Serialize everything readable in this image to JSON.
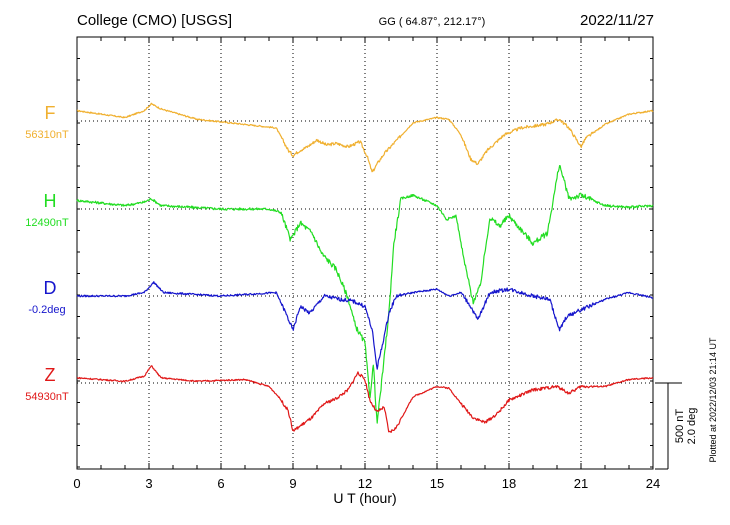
{
  "header": {
    "station": "College (CMO)  [USGS]",
    "coords": "GG ( 64.87°, 212.17°)",
    "date": "2022/11/27"
  },
  "side_note": "Plotted at 2022/12/03 21:14 UT",
  "chart_data": {
    "type": "line",
    "xlabel": "U T (hour)",
    "xlim": [
      0,
      24
    ],
    "xticks": [
      "0",
      "3",
      "6",
      "9",
      "12",
      "15",
      "18",
      "21",
      "24"
    ],
    "grid": true,
    "scale_bar": {
      "label_nt": "500 nT",
      "label_deg": "2.0 deg"
    },
    "series": [
      {
        "name": "F",
        "baseline_label": "56310nT",
        "color": "#f0b030",
        "x": [
          0,
          1,
          2,
          2.8,
          3.1,
          3.5,
          5,
          7,
          8.3,
          8.8,
          9,
          9.3,
          9.6,
          10,
          10.4,
          10.8,
          11.3,
          11.8,
          12.1,
          12.3,
          12.5,
          12.8,
          13.2,
          14,
          15,
          15.5,
          16,
          16.4,
          16.7,
          17.1,
          17.8,
          18.5,
          19.5,
          20.1,
          20.5,
          21,
          21.2,
          22,
          23,
          24
        ],
        "values": [
          60,
          40,
          20,
          60,
          100,
          70,
          10,
          -20,
          -40,
          -170,
          -200,
          -170,
          -150,
          -110,
          -140,
          -130,
          -150,
          -120,
          -210,
          -300,
          -250,
          -190,
          -130,
          -10,
          20,
          10,
          -80,
          -220,
          -250,
          -170,
          -80,
          -40,
          -20,
          10,
          -40,
          -150,
          -100,
          -20,
          40,
          60
        ]
      },
      {
        "name": "H",
        "baseline_label": "12490nT",
        "color": "#22dd22",
        "x": [
          0,
          2,
          2.8,
          3.1,
          3.5,
          6,
          8,
          8.5,
          8.9,
          9.3,
          9.8,
          10.2,
          10.8,
          11.3,
          11.6,
          12,
          12.2,
          12.35,
          12.5,
          12.7,
          13,
          13.2,
          13.5,
          14,
          15,
          15.4,
          15.8,
          16.1,
          16.5,
          16.8,
          17.2,
          17.6,
          18,
          19,
          19.6,
          20.1,
          20.5,
          21,
          22,
          23,
          24
        ],
        "values": [
          50,
          20,
          40,
          60,
          20,
          0,
          0,
          -20,
          -180,
          -80,
          -140,
          -260,
          -350,
          -520,
          -680,
          -780,
          -1100,
          -900,
          -1250,
          -1000,
          -600,
          -200,
          60,
          80,
          20,
          -60,
          -40,
          -280,
          -540,
          -450,
          -50,
          -100,
          -40,
          -200,
          -140,
          260,
          60,
          80,
          20,
          10,
          20
        ]
      },
      {
        "name": "D",
        "baseline_label": "-0.2deg",
        "color": "#1515cc",
        "x": [
          0,
          2,
          2.8,
          3.2,
          3.6,
          6,
          8.3,
          8.7,
          9,
          9.3,
          9.7,
          10.3,
          11,
          11.5,
          12,
          12.3,
          12.5,
          12.7,
          13,
          13.3,
          14,
          15,
          15.5,
          16,
          16.4,
          16.7,
          17.2,
          18,
          19,
          19.7,
          20.1,
          20.4,
          21,
          22,
          23,
          24
        ],
        "values": [
          0,
          0,
          20,
          80,
          20,
          0,
          20,
          -100,
          -200,
          -60,
          -100,
          0,
          -20,
          -30,
          -60,
          -200,
          -420,
          -300,
          -100,
          0,
          20,
          40,
          0,
          20,
          -60,
          -140,
          20,
          40,
          0,
          -20,
          -200,
          -120,
          -80,
          -20,
          20,
          -10
        ]
      },
      {
        "name": "Z",
        "baseline_label": "54930nT",
        "color": "#e01818",
        "x": [
          0,
          2,
          2.8,
          3.1,
          3.5,
          5,
          7,
          8,
          8.4,
          8.8,
          9,
          9.3,
          9.8,
          10.3,
          10.8,
          11.3,
          11.7,
          12,
          12.2,
          12.5,
          12.8,
          13,
          13.3,
          14,
          15,
          15.5,
          16,
          16.5,
          17,
          17.5,
          18,
          19,
          20,
          20.5,
          21,
          22,
          23,
          24
        ],
        "values": [
          30,
          10,
          40,
          100,
          30,
          10,
          20,
          -20,
          -80,
          -160,
          -280,
          -250,
          -200,
          -120,
          -90,
          -40,
          60,
          20,
          -100,
          -170,
          -140,
          -290,
          -260,
          -80,
          -20,
          -30,
          -120,
          -200,
          -230,
          -180,
          -100,
          -40,
          -20,
          -60,
          -20,
          -20,
          20,
          30
        ]
      }
    ]
  }
}
